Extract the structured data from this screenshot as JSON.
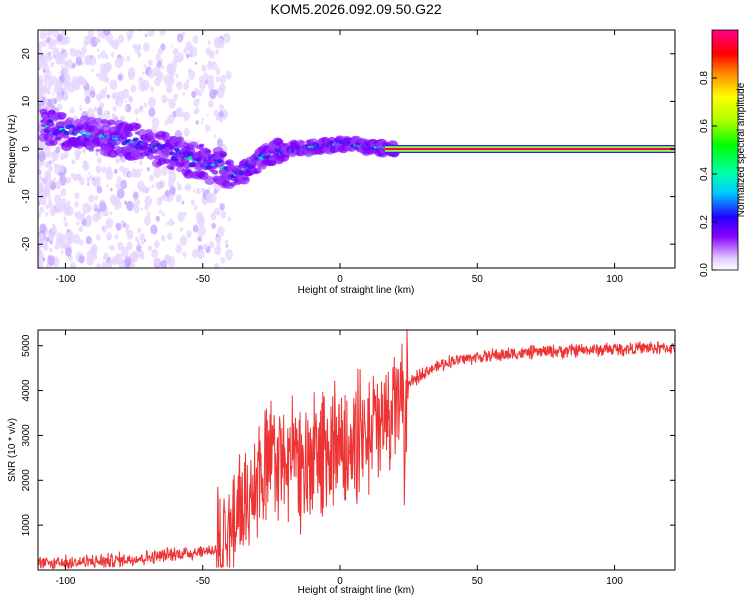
{
  "title": "KOM5.2026.092.09.50.G22",
  "chart_data": [
    {
      "type": "heatmap",
      "name": "spectrogram",
      "xlabel": "Height of straight line (km)",
      "ylabel": "Frequency (Hz)",
      "xlim": [
        -110,
        122
      ],
      "ylim": [
        -25,
        25
      ],
      "xticks": [
        -100,
        -50,
        0,
        50,
        100
      ],
      "xtick_labels": [
        "-100",
        "-50",
        "0",
        "50",
        "100"
      ],
      "yticks": [
        -20,
        -10,
        0,
        10,
        20
      ],
      "ytick_labels": [
        "-20",
        "-10",
        "0",
        "10",
        "20"
      ],
      "colorbar": {
        "label": "Normalized spectral amplitude",
        "range": [
          0,
          1
        ],
        "ticks": [
          0,
          0.2,
          0.4,
          0.6,
          0.8
        ],
        "tick_labels": [
          "0.0",
          "0.2",
          "0.4",
          "0.6",
          "0.8"
        ]
      },
      "ridge": {
        "x": [
          -105,
          -95,
          -85,
          -75,
          -65,
          -55,
          -45,
          -38,
          -33,
          -28,
          -20,
          -12,
          -5,
          0,
          5,
          10,
          15,
          20
        ],
        "y": [
          4.5,
          3.5,
          2.5,
          1.5,
          0.0,
          -2.0,
          -3.5,
          -5.5,
          -4.0,
          -1.5,
          0.0,
          0.3,
          0.8,
          1.0,
          0.8,
          0.5,
          0.3,
          0.0
        ]
      },
      "steady_band": {
        "x_start": 20,
        "x_end": 122,
        "y": 0
      }
    },
    {
      "type": "line",
      "name": "snr",
      "xlabel": "Height of straight line (km)",
      "ylabel": "SNR (10 * v/v)",
      "xlim": [
        -110,
        122
      ],
      "ylim": [
        0,
        5350
      ],
      "xticks": [
        -100,
        -50,
        0,
        50,
        100
      ],
      "xtick_labels": [
        "-100",
        "-50",
        "0",
        "50",
        "100"
      ],
      "yticks": [
        1000,
        2000,
        3000,
        4000,
        5000
      ],
      "ytick_labels": [
        "1000",
        "2000",
        "3000",
        "4000",
        "5000"
      ],
      "color": "#ee3333",
      "envelope": {
        "x": [
          -110,
          -80,
          -60,
          -45,
          -40,
          -35,
          -30,
          -25,
          -20,
          -15,
          -10,
          -5,
          0,
          5,
          10,
          15,
          20,
          25,
          30,
          40,
          50,
          60,
          70,
          80,
          90,
          100,
          110,
          122
        ],
        "y": [
          120,
          220,
          350,
          450,
          800,
          1500,
          2200,
          2400,
          2400,
          2400,
          2500,
          2700,
          2900,
          3000,
          3100,
          3200,
          3600,
          4100,
          4400,
          4650,
          4750,
          4800,
          4850,
          4880,
          4900,
          4920,
          4950,
          4950
        ]
      }
    }
  ]
}
